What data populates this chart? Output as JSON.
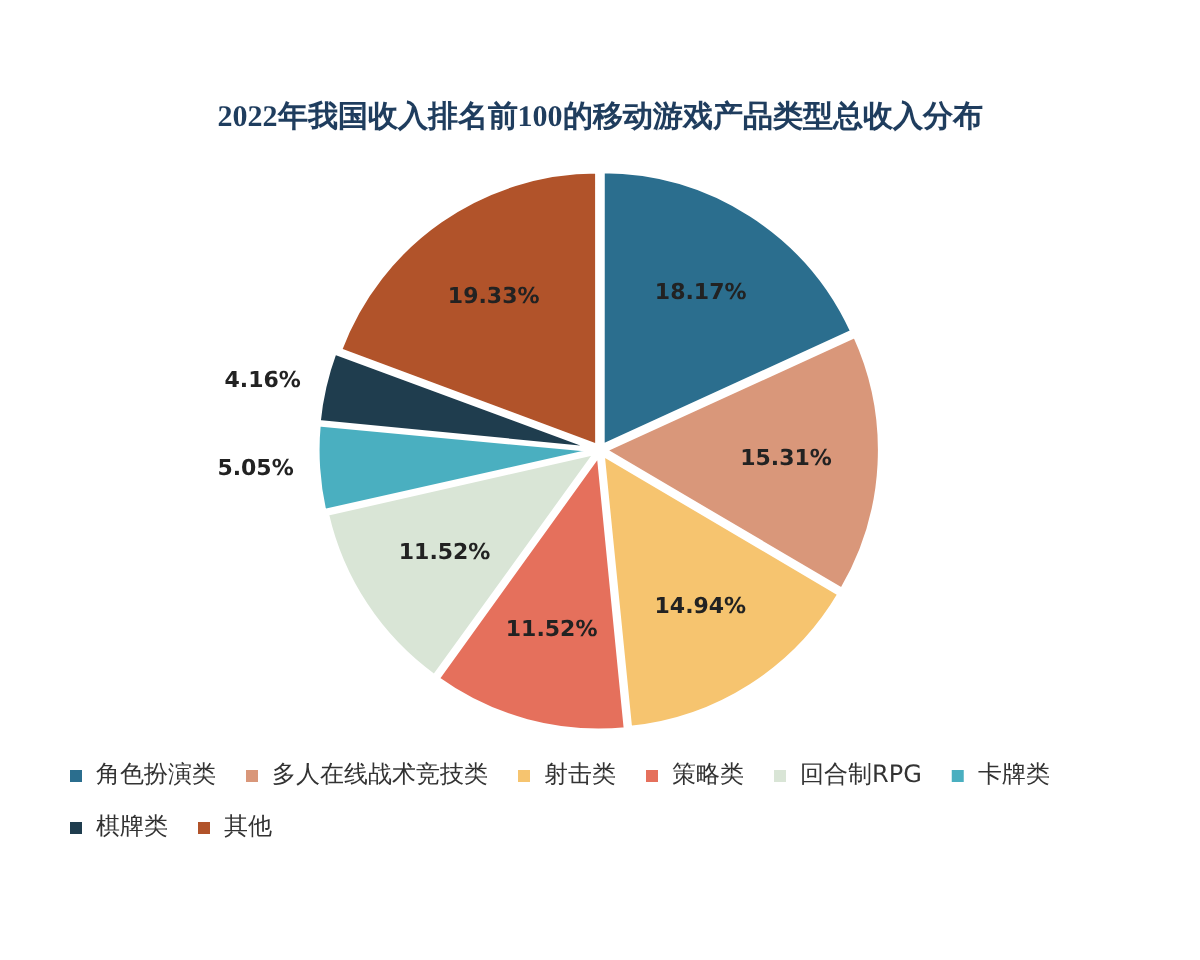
{
  "chart_data": {
    "type": "pie",
    "title": "2022年我国收入排名前100的移动游戏产品类型总收入分布",
    "categories": [
      "角色扮演类",
      "多人在线战术竞技类",
      "射击类",
      "策略类",
      "回合制RPG",
      "卡牌类",
      "棋牌类",
      "其他"
    ],
    "values": [
      18.17,
      15.31,
      14.94,
      11.52,
      11.52,
      5.05,
      4.16,
      19.33
    ],
    "colors": [
      "#2b6e8e",
      "#d9977a",
      "#f6c46f",
      "#e5705c",
      "#d9e5d6",
      "#4aafc0",
      "#1f3d4e",
      "#b1532a"
    ],
    "value_labels": [
      "18.17%",
      "15.31%",
      "14.94%",
      "11.52%",
      "11.52%",
      "5.05%",
      "4.16%",
      "19.33%"
    ],
    "legend": "bottom"
  }
}
